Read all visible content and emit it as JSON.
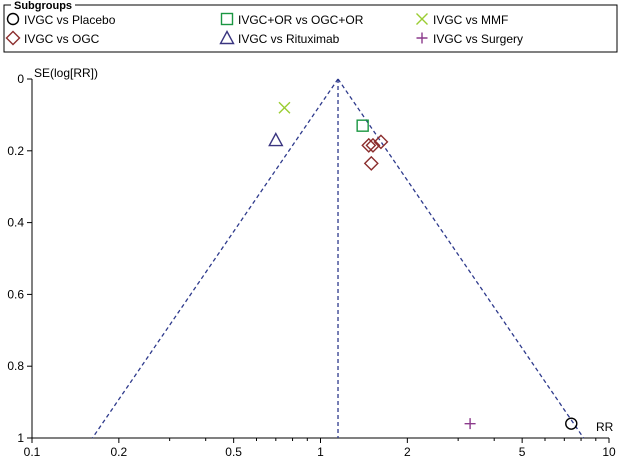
{
  "chart_data": {
    "type": "scatter",
    "title": "",
    "legend": {
      "title": "Subgroups",
      "placement": "top",
      "entries": [
        {
          "label": "IVGC vs Placebo",
          "marker": "circle",
          "color": "#000000"
        },
        {
          "label": "IVGC+OR vs OGC+OR",
          "marker": "square",
          "color": "#1a9641"
        },
        {
          "label": "IVGC vs MMF",
          "marker": "x",
          "color": "#9acd32"
        },
        {
          "label": "IVGC vs OGC",
          "marker": "diamond",
          "color": "#8b2d2d"
        },
        {
          "label": "IVGC vs Rituximab",
          "marker": "triangle",
          "color": "#3a3580"
        },
        {
          "label": "IVGC vs Surgery",
          "marker": "plus",
          "color": "#8b3a8b"
        }
      ]
    },
    "xlabel": "RR",
    "ylabel": "SE(log[RR])",
    "x_scale": "log",
    "xlim": [
      0.1,
      10
    ],
    "ylim": [
      1,
      0
    ],
    "y_inverted": true,
    "x_ticks": [
      "0.1",
      "0.2",
      "0.5",
      "1",
      "2",
      "5",
      "10"
    ],
    "x_tick_values": [
      0.1,
      0.2,
      0.5,
      1,
      2,
      5,
      10
    ],
    "y_ticks": [
      "0",
      "0.2",
      "0.4",
      "0.6",
      "0.8",
      "1"
    ],
    "y_tick_values": [
      0,
      0.2,
      0.4,
      0.6,
      0.8,
      1
    ],
    "grid": false,
    "pooled_rr": 1.15,
    "funnel_z": 1.96,
    "series": [
      {
        "name": "IVGC vs Placebo",
        "marker": "circle",
        "color": "#000000",
        "points": [
          {
            "x": 7.4,
            "y": 0.96
          }
        ]
      },
      {
        "name": "IVGC+OR vs OGC+OR",
        "marker": "square",
        "color": "#1a9641",
        "points": [
          {
            "x": 1.4,
            "y": 0.13
          }
        ]
      },
      {
        "name": "IVGC vs MMF",
        "marker": "x",
        "color": "#9acd32",
        "points": [
          {
            "x": 0.75,
            "y": 0.08
          }
        ]
      },
      {
        "name": "IVGC vs OGC",
        "marker": "diamond",
        "color": "#8b2d2d",
        "points": [
          {
            "x": 1.47,
            "y": 0.185
          },
          {
            "x": 1.52,
            "y": 0.185
          },
          {
            "x": 1.62,
            "y": 0.175
          },
          {
            "x": 1.5,
            "y": 0.235
          }
        ]
      },
      {
        "name": "IVGC vs Rituximab",
        "marker": "triangle",
        "color": "#3a3580",
        "points": [
          {
            "x": 0.7,
            "y": 0.17
          }
        ]
      },
      {
        "name": "IVGC vs Surgery",
        "marker": "plus",
        "color": "#8b3a8b",
        "points": [
          {
            "x": 3.3,
            "y": 0.96
          }
        ]
      }
    ]
  }
}
